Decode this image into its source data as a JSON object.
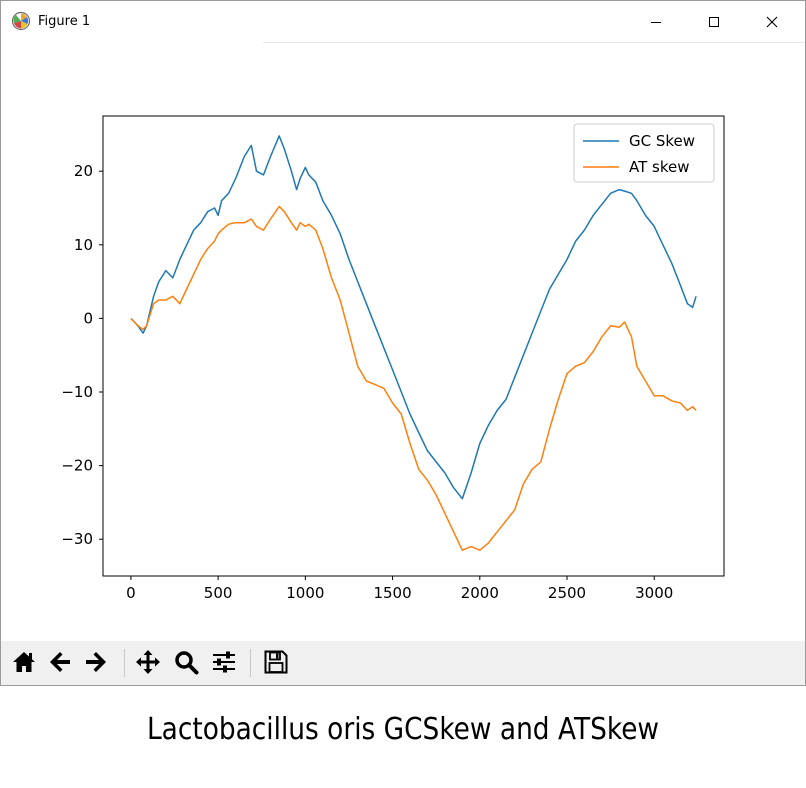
{
  "window": {
    "title": "Figure 1",
    "icon": "matplotlib-logo-icon",
    "controls": [
      "minimize-icon",
      "maximize-icon",
      "close-icon"
    ]
  },
  "toolbar": {
    "buttons": [
      "home-icon",
      "back-arrow-icon",
      "forward-arrow-icon",
      "pan-move-icon",
      "zoom-magnifier-icon",
      "configure-subplots-icon",
      "save-floppy-icon"
    ]
  },
  "caption": "Lactobacillus oris GCSkew and ATSkew",
  "chart_data": {
    "type": "line",
    "title": "",
    "xlabel": "",
    "ylabel": "",
    "xlim": [
      -160,
      3400
    ],
    "ylim": [
      -35,
      27.5
    ],
    "xticks": [
      0,
      500,
      1000,
      1500,
      2000,
      2500,
      3000
    ],
    "yticks": [
      -30,
      -20,
      -10,
      0,
      10,
      20
    ],
    "grid": false,
    "legend": "top-right",
    "series": [
      {
        "name": "GC Skew",
        "color": "#1f77b4",
        "x": [
          0,
          40,
          70,
          90,
          110,
          130,
          160,
          200,
          240,
          280,
          320,
          360,
          400,
          440,
          480,
          500,
          520,
          560,
          600,
          650,
          690,
          720,
          760,
          800,
          850,
          880,
          920,
          950,
          970,
          1000,
          1020,
          1060,
          1100,
          1150,
          1200,
          1250,
          1300,
          1350,
          1400,
          1450,
          1500,
          1550,
          1600,
          1650,
          1700,
          1750,
          1800,
          1850,
          1900,
          1950,
          2000,
          2050,
          2100,
          2150,
          2200,
          2250,
          2300,
          2350,
          2400,
          2450,
          2500,
          2550,
          2600,
          2650,
          2700,
          2750,
          2800,
          2830,
          2870,
          2900,
          2950,
          3000,
          3050,
          3100,
          3150,
          3190,
          3220,
          3240
        ],
        "y": [
          0,
          -1,
          -2,
          -1,
          1,
          3,
          5,
          6.5,
          5.5,
          8,
          10,
          12,
          13,
          14.5,
          15,
          14,
          16,
          17,
          19,
          22,
          23.5,
          20,
          19.5,
          22,
          24.8,
          23,
          20,
          17.5,
          19,
          20.5,
          19.5,
          18.5,
          16,
          14,
          11.5,
          8,
          5,
          2,
          -1,
          -4,
          -7,
          -10,
          -13,
          -15.5,
          -18,
          -19.5,
          -21,
          -23,
          -24.5,
          -21,
          -17,
          -14.5,
          -12.5,
          -11,
          -8,
          -5,
          -2,
          1,
          4,
          6,
          8,
          10.5,
          12,
          14,
          15.5,
          17,
          17.5,
          17.3,
          17,
          16,
          14,
          12.5,
          10,
          7.5,
          4.5,
          2,
          1.5,
          3
        ]
      },
      {
        "name": "AT skew",
        "color": "#ff7f0e",
        "x": [
          0,
          40,
          70,
          90,
          110,
          130,
          160,
          200,
          240,
          280,
          320,
          360,
          400,
          440,
          480,
          500,
          520,
          560,
          600,
          650,
          690,
          720,
          760,
          800,
          850,
          880,
          920,
          950,
          970,
          1000,
          1020,
          1060,
          1100,
          1150,
          1200,
          1250,
          1300,
          1350,
          1400,
          1450,
          1500,
          1550,
          1600,
          1650,
          1700,
          1750,
          1800,
          1850,
          1900,
          1950,
          2000,
          2050,
          2100,
          2150,
          2200,
          2250,
          2300,
          2350,
          2400,
          2450,
          2500,
          2550,
          2600,
          2650,
          2700,
          2750,
          2800,
          2830,
          2870,
          2900,
          2950,
          3000,
          3050,
          3100,
          3150,
          3190,
          3220,
          3240
        ],
        "y": [
          0,
          -1,
          -1.5,
          -1,
          0.5,
          2,
          2.5,
          2.5,
          3,
          2,
          4,
          6,
          8,
          9.5,
          10.5,
          11.5,
          12,
          12.8,
          13,
          13,
          13.5,
          12.5,
          12,
          13.5,
          15.2,
          14.5,
          13,
          12,
          13,
          12.5,
          12.8,
          12,
          9.5,
          5.5,
          2.5,
          -2,
          -6.5,
          -8.5,
          -9,
          -9.5,
          -11.5,
          -13,
          -17,
          -20.5,
          -22,
          -24,
          -26.5,
          -29,
          -31.5,
          -31,
          -31.5,
          -30.5,
          -29,
          -27.5,
          -26,
          -22.5,
          -20.5,
          -19.5,
          -15,
          -11,
          -7.5,
          -6.5,
          -6,
          -4.5,
          -2.5,
          -1,
          -1.2,
          -0.5,
          -2.5,
          -6.5,
          -8.5,
          -10.5,
          -10.5,
          -11.2,
          -11.5,
          -12.5,
          -12,
          -12.5
        ]
      }
    ]
  }
}
